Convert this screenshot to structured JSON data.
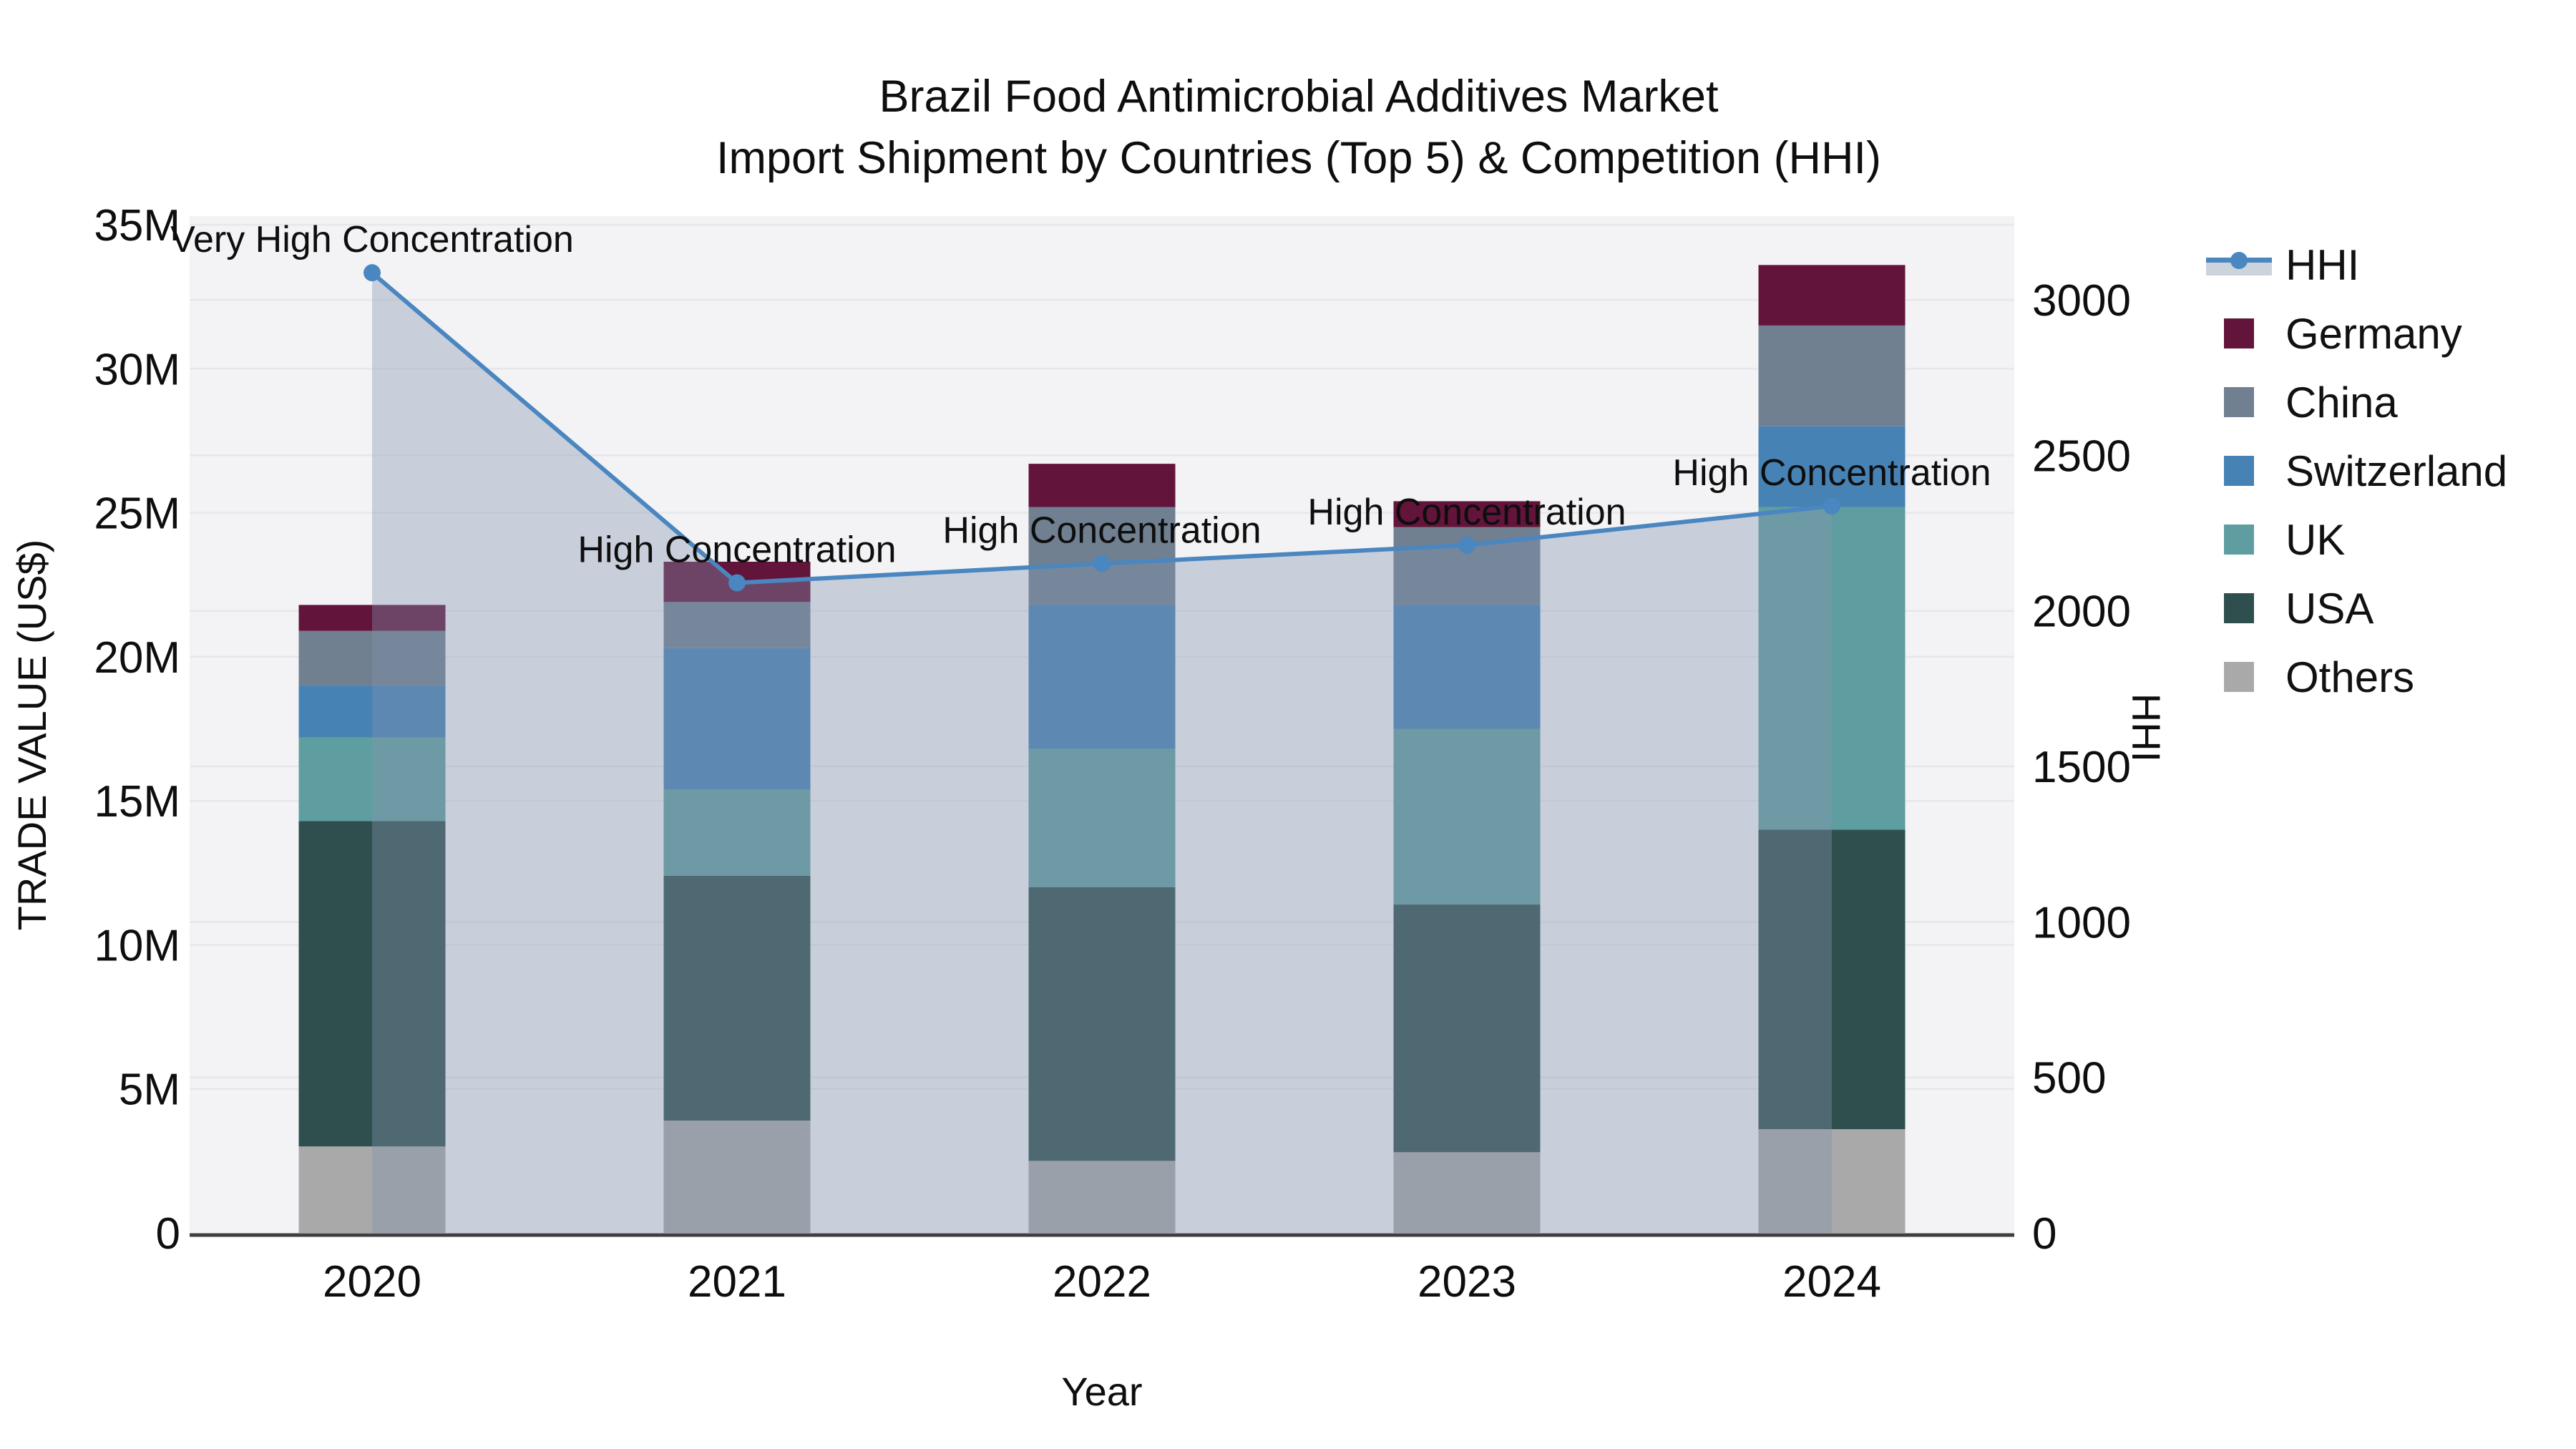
{
  "title": {
    "line1": "Brazil Food Antimicrobial Additives Market",
    "line2": "Import Shipment by Countries (Top 5) & Competition (HHI)"
  },
  "chart_data": {
    "type": "combo_stacked_bar_line",
    "unit": "millions USD",
    "categories": [
      "2020",
      "2021",
      "2022",
      "2023",
      "2024"
    ],
    "series": [
      {
        "name": "Others",
        "color": "#a9a9a9",
        "values": [
          3.0,
          3.9,
          2.5,
          2.8,
          3.6
        ]
      },
      {
        "name": "USA",
        "color": "#2f4f4f",
        "values": [
          11.3,
          8.5,
          9.5,
          8.6,
          10.4
        ]
      },
      {
        "name": "UK",
        "color": "#5f9ea0",
        "values": [
          2.9,
          3.0,
          4.8,
          6.1,
          11.2
        ]
      },
      {
        "name": "Switzerland",
        "color": "#4682b4",
        "values": [
          1.8,
          4.9,
          5.0,
          4.3,
          2.8
        ]
      },
      {
        "name": "China",
        "color": "#708090",
        "values": [
          1.9,
          1.6,
          3.4,
          2.7,
          3.5
        ]
      },
      {
        "name": "Germany",
        "color": "#62143a",
        "values": [
          0.9,
          1.4,
          1.5,
          0.9,
          2.1
        ]
      }
    ],
    "line_series": {
      "name": "HHI",
      "axis": "y2",
      "color": "#4a86c0",
      "fill_color": "rgba(131,147,173,0.38)",
      "values": [
        3087,
        2090,
        2152,
        2211,
        2337
      ]
    },
    "annotations": [
      {
        "x": "2020",
        "text": "Very High Concentration"
      },
      {
        "x": "2021",
        "text": "High Concentration"
      },
      {
        "x": "2022",
        "text": "High Concentration"
      },
      {
        "x": "2023",
        "text": "High Concentration"
      },
      {
        "x": "2024",
        "text": "High Concentration"
      }
    ],
    "xlabel": "Year",
    "ylabel": "TRADE VALUE (US$)",
    "y2label": "HHI",
    "ylim_millions": [
      0,
      35
    ],
    "y2lim": [
      0,
      3000
    ],
    "y_ticks": [
      {
        "v": 0,
        "label": "0"
      },
      {
        "v": 5,
        "label": "5M"
      },
      {
        "v": 10,
        "label": "10M"
      },
      {
        "v": 15,
        "label": "15M"
      },
      {
        "v": 20,
        "label": "20M"
      },
      {
        "v": 25,
        "label": "25M"
      },
      {
        "v": 30,
        "label": "30M"
      },
      {
        "v": 35,
        "label": "35M"
      }
    ],
    "y2_ticks": [
      {
        "v": 0,
        "label": "0"
      },
      {
        "v": 500,
        "label": "500"
      },
      {
        "v": 1000,
        "label": "1000"
      },
      {
        "v": 1500,
        "label": "1500"
      },
      {
        "v": 2000,
        "label": "2000"
      },
      {
        "v": 2500,
        "label": "2500"
      },
      {
        "v": 3000,
        "label": "3000"
      }
    ],
    "grid": true,
    "legend_position": "right"
  },
  "legend": {
    "items": [
      "HHI",
      "Germany",
      "China",
      "Switzerland",
      "UK",
      "USA",
      "Others"
    ]
  },
  "colors": {
    "plot_bg": "#f3f3f5",
    "grid": "#e7e7eb",
    "axis_line": "#3f3f3f",
    "text": "#0e0e0e",
    "hhi_line": "#4a86c0",
    "hhi_fill_swatch": "#ccd3dc"
  }
}
